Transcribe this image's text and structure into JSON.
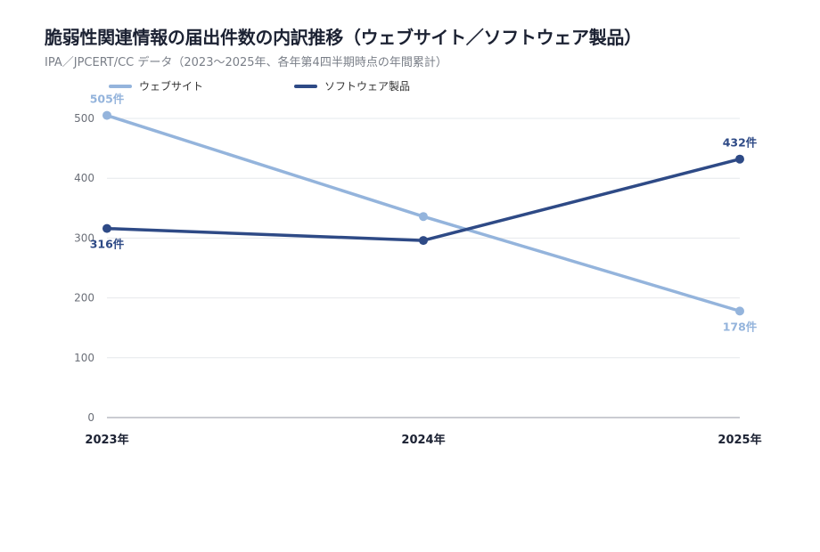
{
  "title": "脆弱性関連情報の届出件数の内訳推移（ウェブサイト／ソフトウェア製品）",
  "subtitle": "IPA／JPCERT/CC データ（2023〜2025年、各年第4四半期時点の年間累計）",
  "colors": {
    "website": "#94b4dc",
    "software": "#2e4a86",
    "grid": "#e6e8ec",
    "axis": "#b8bcc4"
  },
  "chart_data": {
    "type": "line",
    "categories": [
      "2023年",
      "2024年",
      "2025年"
    ],
    "ylim": [
      0,
      500
    ],
    "yticks": [
      "0",
      "100",
      "200",
      "300",
      "400",
      "500"
    ],
    "grid": true,
    "legend_position": "top-left",
    "series": [
      {
        "name": "ウェブサイト",
        "color": "#94b4dc",
        "values": [
          505,
          336,
          178
        ],
        "labels": [
          "505件",
          "",
          "178件"
        ]
      },
      {
        "name": "ソフトウェア製品",
        "color": "#2e4a86",
        "values": [
          316,
          296,
          432
        ],
        "labels": [
          "316件",
          "",
          "432件"
        ]
      }
    ]
  }
}
